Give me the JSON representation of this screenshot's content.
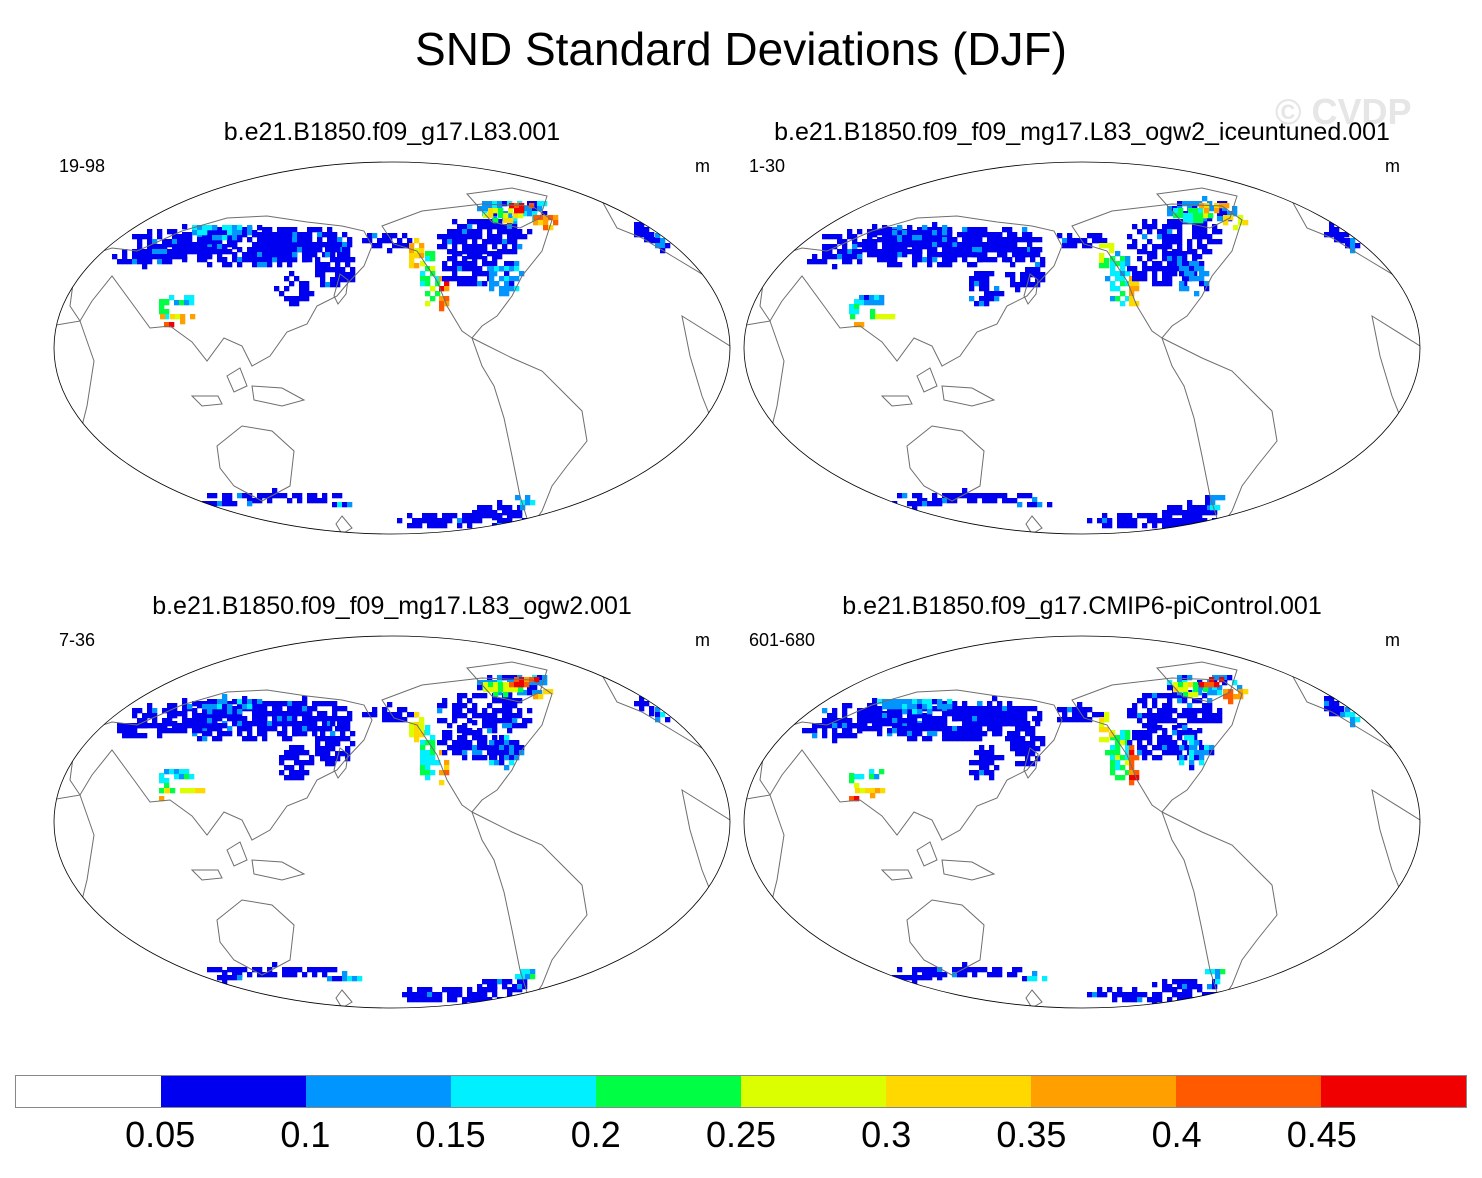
{
  "title": "SND Standard Deviations (DJF)",
  "watermark": "© CVDP",
  "panels": [
    {
      "title": "b.e21.B1850.f09_g17.L83.001",
      "years": "19-98",
      "units": "m",
      "intensity": 1.0
    },
    {
      "title": "b.e21.B1850.f09_f09_mg17.L83_ogw2_iceuntuned.001",
      "years": "1-30",
      "units": "m",
      "intensity": 0.75
    },
    {
      "title": "b.e21.B1850.f09_f09_mg17.L83_ogw2.001",
      "years": "7-36",
      "units": "m",
      "intensity": 0.9
    },
    {
      "title": "b.e21.B1850.f09_g17.CMIP6-piControl.001",
      "years": "601-680",
      "units": "m",
      "intensity": 1.0
    }
  ],
  "colorbar": {
    "colors": [
      "#ffffff",
      "#0000f0",
      "#0095ff",
      "#00f0ff",
      "#00ff44",
      "#dcff00",
      "#ffd800",
      "#ffa000",
      "#ff5a00",
      "#f00000"
    ],
    "labels": [
      "0.05",
      "0.1",
      "0.15",
      "0.2",
      "0.25",
      "0.3",
      "0.35",
      "0.4",
      "0.45"
    ]
  }
}
